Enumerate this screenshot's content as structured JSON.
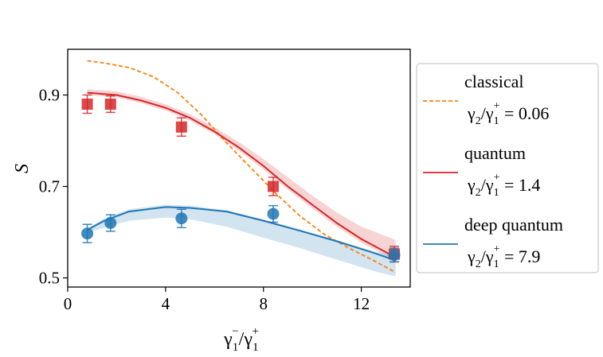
{
  "chart_data": {
    "type": "line",
    "title": "",
    "xlabel": "γ1−/γ1+",
    "ylabel": "S",
    "xlim": [
      0,
      14
    ],
    "ylim": [
      0.48,
      1.0
    ],
    "xticks": [
      0,
      4,
      8,
      12
    ],
    "yticks": [
      0.5,
      0.7,
      0.9
    ],
    "xtick_labels": [
      "0",
      "4",
      "8",
      "12"
    ],
    "ytick_labels": [
      "0.5",
      "0.7",
      "0.9"
    ],
    "grid": false,
    "legend_position": "right",
    "colors": {
      "classical": "#ff7f0e",
      "quantum": "#d62728",
      "deep": "#1f77b4"
    },
    "series": [
      {
        "name": "classical",
        "legend_line1": "classical",
        "legend_ratio_value": "0.06",
        "style": "dashed",
        "color": "#ff7f0e",
        "x": [
          0.8,
          1.5,
          2.5,
          3.5,
          4.5,
          5.5,
          6.5,
          7.5,
          8.5,
          9.5,
          10.5,
          11.5,
          12.5,
          13.4
        ],
        "y": [
          0.975,
          0.97,
          0.96,
          0.94,
          0.905,
          0.855,
          0.795,
          0.74,
          0.685,
          0.635,
          0.595,
          0.565,
          0.538,
          0.512
        ]
      },
      {
        "name": "quantum",
        "legend_line1": "quantum",
        "legend_ratio_value": "1.4",
        "style": "solid",
        "color": "#d62728",
        "x": [
          0.8,
          2,
          3,
          4,
          5,
          6,
          7,
          8,
          9,
          10,
          11,
          12,
          13.4
        ],
        "y": [
          0.905,
          0.9,
          0.888,
          0.872,
          0.85,
          0.82,
          0.785,
          0.745,
          0.7,
          0.66,
          0.62,
          0.585,
          0.545
        ],
        "band_upper": [
          0.913,
          0.908,
          0.896,
          0.88,
          0.858,
          0.83,
          0.797,
          0.76,
          0.72,
          0.68,
          0.643,
          0.612,
          0.583
        ],
        "band_lower": [
          0.9,
          0.895,
          0.882,
          0.866,
          0.844,
          0.814,
          0.778,
          0.737,
          0.693,
          0.652,
          0.612,
          0.577,
          0.537
        ],
        "points": [
          {
            "x": 0.8,
            "y": 0.88,
            "err": 0.02
          },
          {
            "x": 1.75,
            "y": 0.88,
            "err": 0.018
          },
          {
            "x": 4.65,
            "y": 0.83,
            "err": 0.02
          },
          {
            "x": 8.4,
            "y": 0.7,
            "err": 0.02
          },
          {
            "x": 13.35,
            "y": 0.552,
            "err": 0.017
          }
        ]
      },
      {
        "name": "deep quantum",
        "legend_line1": "deep quantum",
        "legend_ratio_value": "7.9",
        "style": "solid",
        "color": "#1f77b4",
        "x": [
          0.8,
          1.5,
          2.5,
          4,
          5,
          6.5,
          8,
          9.5,
          11,
          12.5,
          13.4
        ],
        "y": [
          0.605,
          0.625,
          0.645,
          0.655,
          0.653,
          0.645,
          0.625,
          0.603,
          0.58,
          0.555,
          0.538
        ],
        "band_upper": [
          0.608,
          0.63,
          0.65,
          0.66,
          0.658,
          0.648,
          0.628,
          0.606,
          0.583,
          0.558,
          0.55
        ],
        "band_lower": [
          0.598,
          0.61,
          0.625,
          0.632,
          0.628,
          0.612,
          0.588,
          0.565,
          0.54,
          0.515,
          0.503
        ],
        "points": [
          {
            "x": 0.8,
            "y": 0.597,
            "err": 0.02
          },
          {
            "x": 1.75,
            "y": 0.62,
            "err": 0.018
          },
          {
            "x": 4.65,
            "y": 0.63,
            "err": 0.02
          },
          {
            "x": 8.4,
            "y": 0.64,
            "err": 0.018
          },
          {
            "x": 13.35,
            "y": 0.55,
            "err": 0.015
          }
        ]
      }
    ]
  }
}
